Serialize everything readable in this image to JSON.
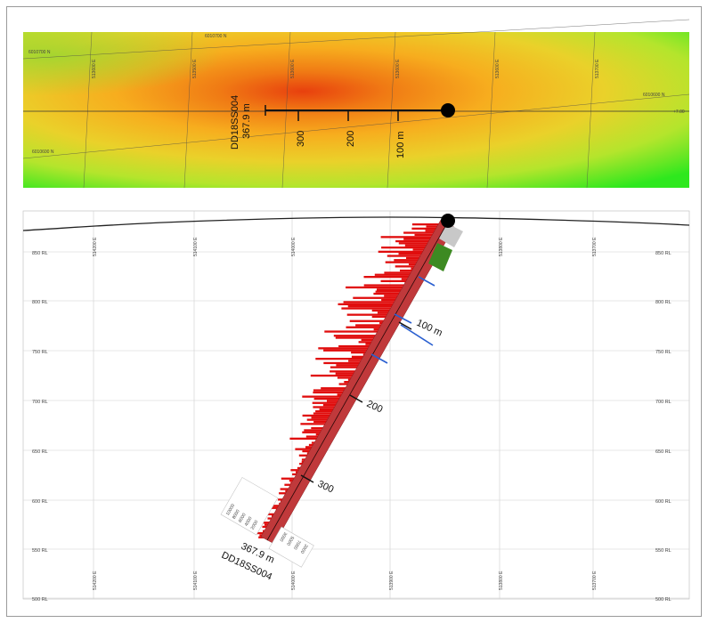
{
  "plan": {
    "hole_id": "DD18SS004",
    "hole_length": "367.9 m",
    "distance_labels": [
      "300",
      "200",
      "100 m"
    ],
    "northing_labels": [
      "6010700 N",
      "6010700 N",
      "6010600 N",
      "6010600 N"
    ],
    "easting_labels": [
      "513600 E",
      "513500 E",
      "513600 E",
      "513600 E",
      "513600 E",
      "513700 E"
    ],
    "edge_tag": "+7.00"
  },
  "section": {
    "rl_labels": [
      "850 RL",
      "800 RL",
      "750 RL",
      "700 RL",
      "650 RL",
      "600 RL",
      "550 RL",
      "500 RL"
    ],
    "easting_labels": [
      "514200 E",
      "514100 E",
      "514000 E",
      "513900 E",
      "513800 E",
      "513700 E"
    ],
    "depth_labels": [
      "100 m",
      "200",
      "300"
    ],
    "hole_id": "DD18SS004",
    "hole_length": "367.9 m",
    "scale_left": [
      "10000",
      "8000",
      "6000",
      "4000",
      "2000"
    ],
    "scale_right": [
      "3000",
      "5000",
      "7000",
      "2000"
    ],
    "colors": {
      "assay": "#e00d0d",
      "trace": "#c0393b",
      "structure": "#2a5fd0",
      "green_zone": "#3d8a22",
      "collar": "#000000"
    }
  }
}
